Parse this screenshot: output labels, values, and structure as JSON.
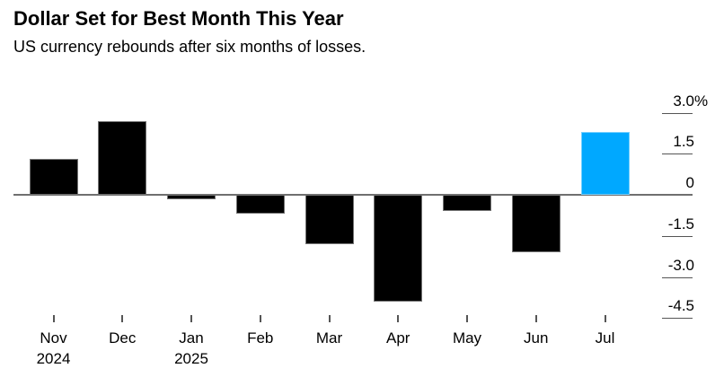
{
  "header": {
    "title": "Dollar Set for Best Month This Year",
    "subtitle": "US currency rebounds after six months of losses."
  },
  "chart_data": {
    "type": "bar",
    "title": "Dollar Set for Best Month This Year",
    "subtitle": "US currency rebounds after six months of losses.",
    "unit": "%",
    "categories": [
      "Nov",
      "Dec",
      "Jan",
      "Feb",
      "Mar",
      "Apr",
      "May",
      "Jun",
      "Jul"
    ],
    "category_sublabels": [
      "2024",
      "",
      "2025",
      "",
      "",
      "",
      "",
      "",
      ""
    ],
    "values": [
      1.3,
      2.7,
      -0.15,
      -0.7,
      -1.8,
      -3.9,
      -0.6,
      -2.1,
      2.3
    ],
    "highlight_index": 8,
    "xlabel": "",
    "ylabel": "",
    "yticks": [
      3.0,
      1.5,
      0,
      -1.5,
      -3.0,
      -4.5
    ],
    "ytick_labels": [
      "3.0",
      "1.5",
      "0",
      "-1.5",
      "-3.0",
      "-4.5"
    ],
    "ytick_suffix_on_first": "%",
    "ylim": [
      -4.5,
      3.0
    ],
    "grid": false,
    "legend": "none",
    "colors": {
      "bar": "#000000",
      "highlight": "#00A8FF",
      "axis_line": "#6f6f6f",
      "tick": "#555555",
      "text": "#000000"
    }
  }
}
